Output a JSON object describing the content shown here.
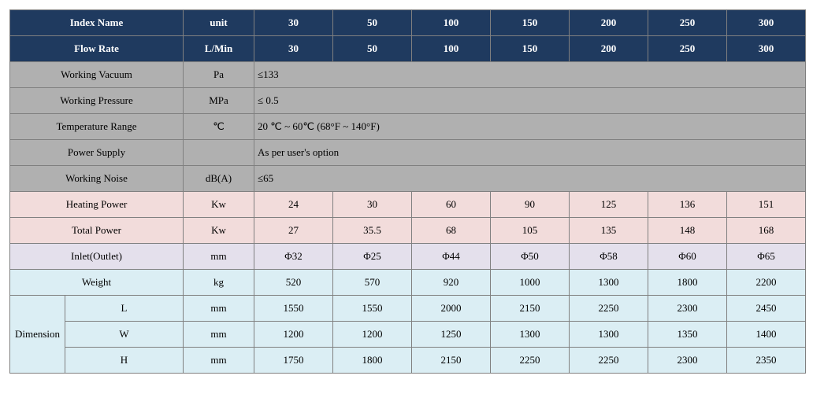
{
  "colors": {
    "header_bg": "#1f3a5f",
    "header_fg": "#ffffff",
    "gray": "#b0b0b0",
    "pink": "#f2dcdb",
    "lavender": "#e4e0ec",
    "blue": "#dbeef4",
    "border": "#808080"
  },
  "header": {
    "index_name": "Index Name",
    "unit": "unit",
    "cols": [
      "30",
      "50",
      "100",
      "150",
      "200",
      "250",
      "300"
    ],
    "flow_rate": "Flow Rate",
    "flow_unit": "L/Min",
    "flow_vals": [
      "30",
      "50",
      "100",
      "150",
      "200",
      "250",
      "300"
    ]
  },
  "spec": {
    "vacuum": {
      "label": "Working Vacuum",
      "unit": "Pa",
      "val": "≤133"
    },
    "pressure": {
      "label": "Working Pressure",
      "unit": "MPa",
      "val": "≤ 0.5"
    },
    "temp": {
      "label": "Temperature Range",
      "unit": "℃",
      "val": "20 ℃ ~ 60℃ (68°F ~ 140°F)"
    },
    "power": {
      "label": "Power Supply",
      "unit": "",
      "val": "As per user's option"
    },
    "noise": {
      "label": "Working Noise",
      "unit": "dB(A)",
      "val": "≤65"
    }
  },
  "rows": {
    "heat": {
      "label": "Heating Power",
      "unit": "Kw",
      "v": [
        "24",
        "30",
        "60",
        "90",
        "125",
        "136",
        "151"
      ]
    },
    "total": {
      "label": "Total Power",
      "unit": "Kw",
      "v": [
        "27",
        "35.5",
        "68",
        "105",
        "135",
        "148",
        "168"
      ]
    },
    "inlet": {
      "label": "Inlet(Outlet)",
      "unit": "mm",
      "v": [
        "Φ32",
        "Φ25",
        "Φ44",
        "Φ50",
        "Φ58",
        "Φ60",
        "Φ65"
      ]
    },
    "weight": {
      "label": "Weight",
      "unit": "kg",
      "v": [
        "520",
        "570",
        "920",
        "1000",
        "1300",
        "1800",
        "2200"
      ]
    }
  },
  "dim": {
    "label": "Dimension",
    "L": {
      "sub": "L",
      "unit": "mm",
      "v": [
        "1550",
        "1550",
        "2000",
        "2150",
        "2250",
        "2300",
        "2450"
      ]
    },
    "W": {
      "sub": "W",
      "unit": "mm",
      "v": [
        "1200",
        "1200",
        "1250",
        "1300",
        "1300",
        "1350",
        "1400"
      ]
    },
    "H": {
      "sub": "H",
      "unit": "mm",
      "v": [
        "1750",
        "1800",
        "2150",
        "2250",
        "2250",
        "2300",
        "2350"
      ]
    }
  }
}
